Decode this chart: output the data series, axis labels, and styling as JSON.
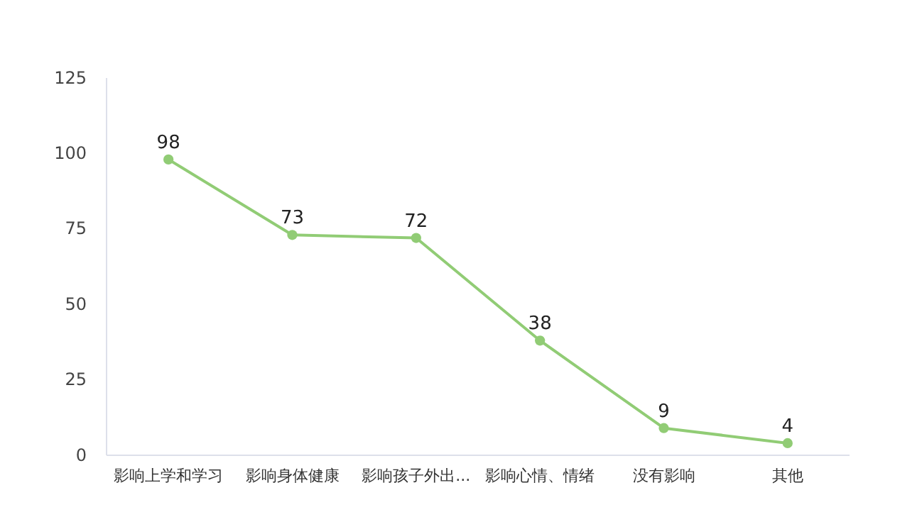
{
  "chart_data": {
    "type": "line",
    "categories": [
      "影响上学和学习",
      "影响身体健康",
      "影响孩子外出...",
      "影响心情、情绪",
      "没有影响",
      "其他"
    ],
    "series": [
      {
        "color": "#91cc75",
        "values": [
          98,
          73,
          72,
          38,
          9,
          4
        ]
      }
    ],
    "ylim": [
      0,
      125
    ],
    "yticks": [
      0,
      25,
      50,
      75,
      100,
      125
    ],
    "grid": false,
    "marker": "circle",
    "line_style": "solid",
    "data_labels": true
  }
}
